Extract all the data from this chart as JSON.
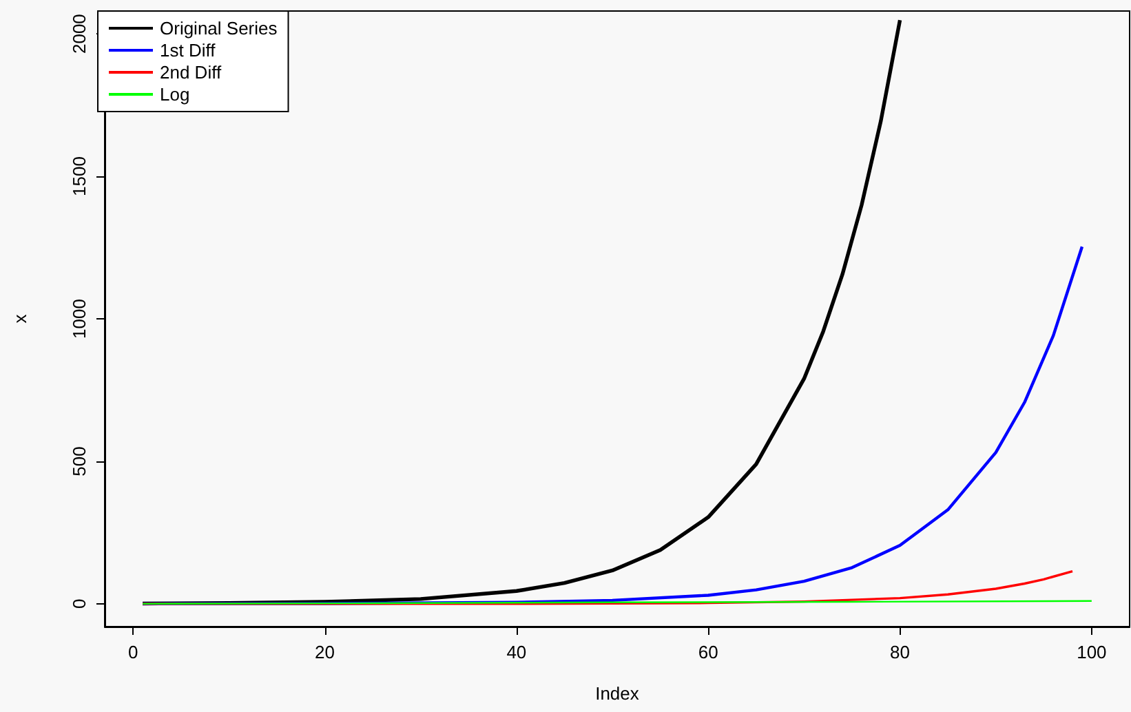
{
  "chart_data": {
    "type": "line",
    "xlabel": "Index",
    "ylabel": "x",
    "xlim": [
      -2.96,
      103.96
    ],
    "ylim": [
      -80,
      2080
    ],
    "xticks": [
      0,
      20,
      40,
      60,
      80,
      100
    ],
    "yticks": [
      0,
      500,
      1000,
      1500,
      2000
    ],
    "grid": false,
    "legend": "top left",
    "marker": "none",
    "line_style": "solid",
    "series": [
      {
        "name": "Original Series",
        "color": "#000000",
        "x": [
          1,
          10,
          20,
          30,
          40,
          45,
          50,
          55,
          60,
          65,
          70,
          72,
          74,
          76,
          78,
          80
        ],
        "values": [
          1,
          3,
          7,
          17,
          45,
          73,
          117,
          189,
          304,
          490,
          790,
          956,
          1156,
          1399,
          1693,
          2048
        ]
      },
      {
        "name": "1st Diff",
        "color": "#0000ff",
        "x": [
          1,
          20,
          40,
          50,
          60,
          65,
          70,
          75,
          80,
          85,
          90,
          93,
          96,
          99
        ],
        "values": [
          0,
          1,
          5,
          12,
          30,
          49,
          79,
          127,
          205,
          330,
          531,
          707,
          941,
          1253
        ]
      },
      {
        "name": "2nd Diff",
        "color": "#ff0000",
        "x": [
          1,
          40,
          60,
          70,
          80,
          85,
          90,
          93,
          95,
          98
        ],
        "values": [
          0,
          0,
          3,
          8,
          20,
          33,
          53,
          71,
          86,
          114
        ]
      },
      {
        "name": "Log",
        "color": "#00ff00",
        "x": [
          1,
          25,
          50,
          75,
          100
        ],
        "values": [
          0,
          2,
          5,
          7,
          10
        ]
      }
    ]
  }
}
